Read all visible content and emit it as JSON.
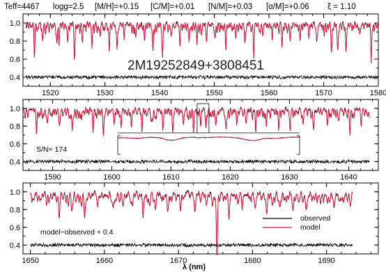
{
  "header": {
    "teff": "Teff=4467",
    "logg": "logg=2.5",
    "mh": "[M/H]=+0.15",
    "cm": "[C/M]=+0.01",
    "nm": "[N/M]=+0.03",
    "am": "[α/M]=+0.06",
    "xi": "ξ = 1.10"
  },
  "star_id": "2M19252849+3808451",
  "snr_label": "S/N= 174",
  "residual_label": "model−observed + 0.4",
  "legend": {
    "observed": "observed",
    "model": "model"
  },
  "xlabel": "λ (nm)",
  "colors": {
    "observed": "#000000",
    "model": "#e8103a"
  },
  "chart_data": [
    {
      "type": "line",
      "xlim": [
        1515,
        1580
      ],
      "ylim": [
        0.3,
        1.1
      ],
      "xticks": [
        "1520",
        "1530",
        "1540",
        "1550",
        "1560",
        "1570",
        "1580"
      ],
      "yticks": [
        "0.4",
        "0.6",
        "0.8",
        "1.0"
      ],
      "series": [
        {
          "name": "observed",
          "x_range": [
            1515.5,
            1580
          ],
          "continuum": 1.0
        },
        {
          "name": "model",
          "x_range": [
            1515.5,
            1580
          ],
          "continuum": 1.0
        },
        {
          "name": "residual",
          "x_range": [
            1515.5,
            1580
          ],
          "offset": 0.4
        }
      ],
      "lines": [
        [
          1517.1,
          0.33
        ],
        [
          1518.6,
          0.2
        ],
        [
          1521.2,
          0.18
        ],
        [
          1521.6,
          0.15
        ],
        [
          1523.2,
          0.12
        ],
        [
          1524.4,
          0.34
        ],
        [
          1525.9,
          0.14
        ],
        [
          1527.6,
          0.2
        ],
        [
          1529.1,
          0.12
        ],
        [
          1530.8,
          0.22
        ],
        [
          1532.2,
          0.28
        ],
        [
          1533.5,
          0.16
        ],
        [
          1535.6,
          0.12
        ],
        [
          1537.2,
          0.15
        ],
        [
          1538.8,
          0.24
        ],
        [
          1540.5,
          0.3
        ],
        [
          1542.1,
          0.14
        ],
        [
          1543.7,
          0.22
        ],
        [
          1545.4,
          0.18
        ],
        [
          1546.8,
          0.14
        ],
        [
          1548.6,
          0.16
        ],
        [
          1550.2,
          0.12
        ],
        [
          1552.1,
          0.2
        ],
        [
          1553.9,
          0.14
        ],
        [
          1555.6,
          0.18
        ],
        [
          1557.2,
          0.3
        ],
        [
          1558.9,
          0.12
        ],
        [
          1560.6,
          0.2
        ],
        [
          1562.4,
          0.24
        ],
        [
          1563.9,
          0.16
        ],
        [
          1565.7,
          0.18
        ],
        [
          1567.3,
          0.14
        ],
        [
          1568.7,
          0.18
        ],
        [
          1570.1,
          0.12
        ],
        [
          1571.4,
          0.28
        ],
        [
          1572.6,
          0.26
        ],
        [
          1574.1,
          0.22
        ],
        [
          1576.6,
          0.12
        ],
        [
          1578.7,
          0.42
        ]
      ]
    },
    {
      "type": "line",
      "xlim": [
        1585,
        1645
      ],
      "ylim": [
        0.3,
        1.1
      ],
      "xticks": [
        "1590",
        "1600",
        "1610",
        "1620",
        "1630",
        "1640"
      ],
      "yticks": [
        "0.4",
        "0.6",
        "0.8",
        "1.0"
      ],
      "series": [
        {
          "name": "observed",
          "x_range": [
            1585,
            1643.5
          ],
          "continuum": 1.0
        },
        {
          "name": "model",
          "x_range": [
            1585,
            1643.5
          ],
          "continuum": 1.0
        },
        {
          "name": "residual",
          "x_range": [
            1585,
            1643.5
          ],
          "offset": 0.4
        }
      ],
      "inset": {
        "x_range": [
          1614.4,
          1616.4
        ],
        "label": ""
      },
      "lines": [
        [
          1587.3,
          0.2
        ],
        [
          1589.1,
          0.14
        ],
        [
          1591.2,
          0.16
        ],
        [
          1593.3,
          0.22
        ],
        [
          1594.9,
          0.12
        ],
        [
          1596.8,
          0.18
        ],
        [
          1598.6,
          0.22
        ],
        [
          1600.4,
          0.16
        ],
        [
          1601.6,
          0.12
        ],
        [
          1603.3,
          0.2
        ],
        [
          1605.1,
          0.16
        ],
        [
          1606.9,
          0.14
        ],
        [
          1608.6,
          0.18
        ],
        [
          1610.3,
          0.24
        ],
        [
          1612.1,
          0.18
        ],
        [
          1613.8,
          0.16
        ],
        [
          1615.0,
          0.14
        ],
        [
          1615.9,
          0.2
        ],
        [
          1617.6,
          0.14
        ],
        [
          1619.3,
          0.22
        ],
        [
          1621.1,
          0.18
        ],
        [
          1622.7,
          0.14
        ],
        [
          1624.3,
          0.22
        ],
        [
          1626.1,
          0.18
        ],
        [
          1628.2,
          0.16
        ],
        [
          1630.1,
          0.2
        ],
        [
          1632.3,
          0.16
        ],
        [
          1634.1,
          0.2
        ],
        [
          1636.4,
          0.16
        ],
        [
          1638.3,
          0.12
        ],
        [
          1640.2,
          0.24
        ],
        [
          1642.1,
          0.18
        ]
      ]
    },
    {
      "type": "line",
      "xlim": [
        1649,
        1697
      ],
      "ylim": [
        0.3,
        1.1
      ],
      "xticks": [
        "1650",
        "1660",
        "1670",
        "1680",
        "1690"
      ],
      "yticks": [
        "0.4",
        "0.6",
        "0.8",
        "1.0"
      ],
      "series": [
        {
          "name": "observed",
          "x_range": [
            1650,
            1693.5
          ],
          "continuum": 1.0
        },
        {
          "name": "model",
          "x_range": [
            1650,
            1693.5
          ],
          "continuum": 1.0
        },
        {
          "name": "residual",
          "x_range": [
            1650,
            1693.5
          ],
          "offset": 0.4
        }
      ],
      "lines": [
        [
          1652.2,
          0.14
        ],
        [
          1653.9,
          0.18
        ],
        [
          1655.6,
          0.14
        ],
        [
          1657.3,
          0.2
        ],
        [
          1659.1,
          0.12
        ],
        [
          1661.2,
          0.16
        ],
        [
          1663.6,
          0.12
        ],
        [
          1665.2,
          0.22
        ],
        [
          1666.9,
          0.14
        ],
        [
          1668.6,
          0.16
        ],
        [
          1670.3,
          0.12
        ],
        [
          1672.2,
          0.18
        ],
        [
          1674.6,
          0.14
        ],
        [
          1675.2,
          0.72
        ],
        [
          1676.8,
          0.2
        ],
        [
          1678.6,
          0.16
        ],
        [
          1680.4,
          0.14
        ],
        [
          1681.9,
          0.18
        ],
        [
          1683.7,
          0.14
        ],
        [
          1685.5,
          0.16
        ],
        [
          1687.3,
          0.14
        ],
        [
          1689.2,
          0.12
        ],
        [
          1691.0,
          0.14
        ]
      ]
    }
  ]
}
